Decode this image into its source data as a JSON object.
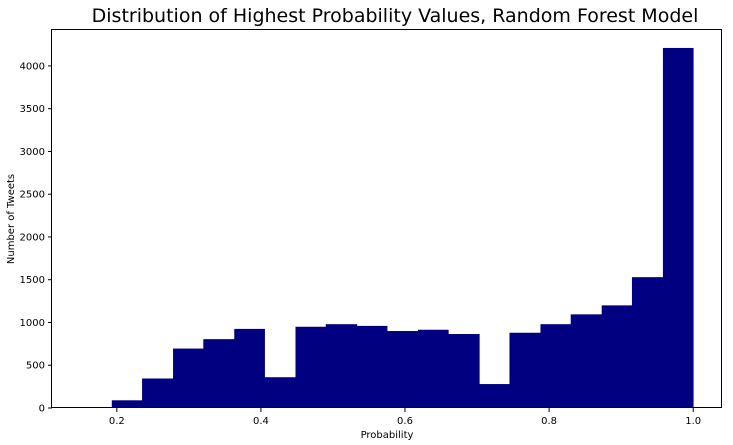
{
  "chart_data": {
    "type": "bar",
    "title": "Distribution of Highest Probability Values, Random Forest Model",
    "xlabel": "Probability",
    "ylabel": "Number of Tweets",
    "xlim": [
      0.11,
      1.04
    ],
    "ylim": [
      0,
      4420
    ],
    "xticks": [
      "0.2",
      "0.4",
      "0.6",
      "0.8",
      "1.0"
    ],
    "xtick_values": [
      0.2,
      0.4,
      0.6,
      0.8,
      1.0
    ],
    "yticks": [
      "0",
      "500",
      "1000",
      "1500",
      "2000",
      "2500",
      "3000",
      "3500",
      "4000"
    ],
    "ytick_values": [
      0,
      500,
      1000,
      1500,
      2000,
      2500,
      3000,
      3500,
      4000
    ],
    "bar_color": "#000080",
    "grid": false,
    "bins": [
      {
        "x0": 0.15,
        "x1": 0.193,
        "value": 10
      },
      {
        "x0": 0.193,
        "x1": 0.235,
        "value": 90
      },
      {
        "x0": 0.235,
        "x1": 0.278,
        "value": 345
      },
      {
        "x0": 0.278,
        "x1": 0.32,
        "value": 695
      },
      {
        "x0": 0.32,
        "x1": 0.363,
        "value": 805
      },
      {
        "x0": 0.363,
        "x1": 0.405,
        "value": 925
      },
      {
        "x0": 0.405,
        "x1": 0.448,
        "value": 360
      },
      {
        "x0": 0.448,
        "x1": 0.49,
        "value": 950
      },
      {
        "x0": 0.49,
        "x1": 0.533,
        "value": 980
      },
      {
        "x0": 0.533,
        "x1": 0.575,
        "value": 960
      },
      {
        "x0": 0.575,
        "x1": 0.618,
        "value": 900
      },
      {
        "x0": 0.618,
        "x1": 0.66,
        "value": 915
      },
      {
        "x0": 0.66,
        "x1": 0.703,
        "value": 865
      },
      {
        "x0": 0.703,
        "x1": 0.745,
        "value": 280
      },
      {
        "x0": 0.745,
        "x1": 0.788,
        "value": 880
      },
      {
        "x0": 0.788,
        "x1": 0.83,
        "value": 980
      },
      {
        "x0": 0.83,
        "x1": 0.873,
        "value": 1095
      },
      {
        "x0": 0.873,
        "x1": 0.915,
        "value": 1200
      },
      {
        "x0": 0.915,
        "x1": 0.958,
        "value": 1530
      },
      {
        "x0": 0.958,
        "x1": 1.0,
        "value": 4210
      }
    ]
  }
}
